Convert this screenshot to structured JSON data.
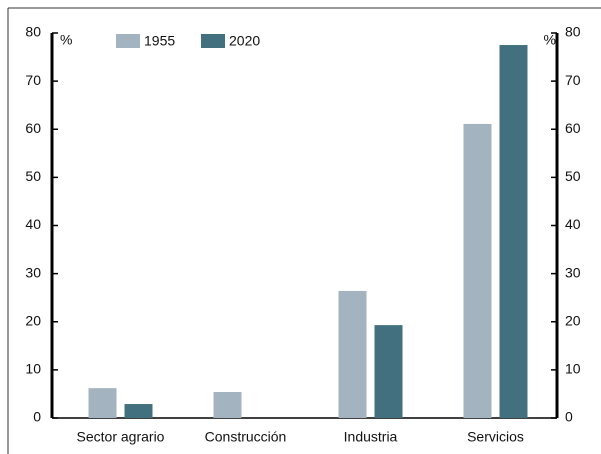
{
  "chart_data": {
    "type": "bar",
    "ylabel": "%",
    "y2label": "%",
    "categories": [
      "Sector agrario",
      "Construcción",
      "Industria",
      "Servicios"
    ],
    "series": [
      {
        "name": "1955",
        "color": "#a3b3bf",
        "values": [
          6.2,
          5.4,
          26.4,
          61.1
        ]
      },
      {
        "name": "2020",
        "color": "#42707f",
        "values": [
          2.9,
          null,
          19.3,
          77.5
        ]
      }
    ],
    "ylim": [
      0,
      80
    ],
    "yticks": [
      0,
      10,
      20,
      30,
      40,
      50,
      60,
      70,
      80
    ],
    "y2lim": [
      0,
      80
    ],
    "y2ticks": [
      0,
      10,
      20,
      30,
      40,
      50,
      60,
      70,
      80
    ],
    "legend": "top"
  }
}
